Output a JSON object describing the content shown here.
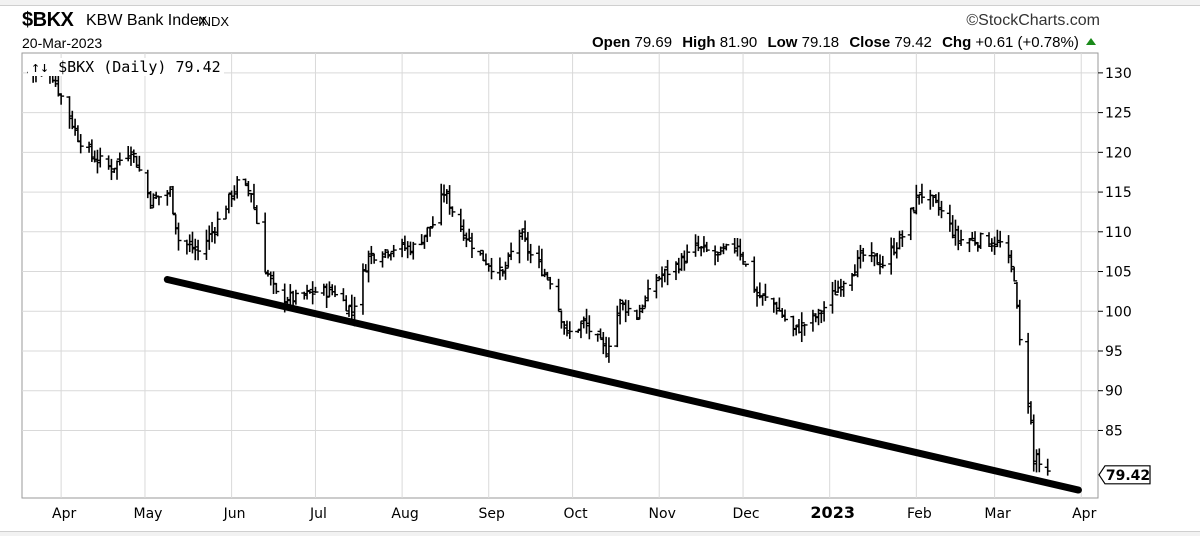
{
  "header": {
    "symbol": "$BKX",
    "name": "KBW Bank Index",
    "exchange": "INDX",
    "date": "20-Mar-2023",
    "brand": "©StockCharts.com",
    "quote": {
      "open_label": "Open",
      "open": "79.69",
      "high_label": "High",
      "high": "81.90",
      "low_label": "Low",
      "low": "79.18",
      "close_label": "Close",
      "close": "79.42",
      "chg_label": "Chg",
      "chg": "+0.61 (+0.78%)"
    }
  },
  "legend": {
    "text": "$BKX (Daily) 79.42"
  },
  "colors": {
    "bars": "#000000",
    "trendline": "#000000",
    "grid": "#d9d9d9",
    "up": "#1a8a1a"
  },
  "chart_data": {
    "type": "ohlc",
    "title": "$BKX (Daily) 79.42",
    "ylim": [
      76.5,
      132.5
    ],
    "yticks": [
      85,
      90,
      95,
      100,
      105,
      110,
      115,
      120,
      125,
      130
    ],
    "xticks": [
      {
        "label": "Apr",
        "date": "2022-04-01"
      },
      {
        "label": "May",
        "date": "2022-05-01"
      },
      {
        "label": "Jun",
        "date": "2022-06-01"
      },
      {
        "label": "Jul",
        "date": "2022-07-01"
      },
      {
        "label": "Aug",
        "date": "2022-08-01"
      },
      {
        "label": "Sep",
        "date": "2022-09-01"
      },
      {
        "label": "Oct",
        "date": "2022-10-01"
      },
      {
        "label": "Nov",
        "date": "2022-11-01"
      },
      {
        "label": "Dec",
        "date": "2022-12-01"
      },
      {
        "label": "2023",
        "date": "2023-01-01",
        "bold": true
      },
      {
        "label": "Feb",
        "date": "2023-02-01"
      },
      {
        "label": "Mar",
        "date": "2023-03-01"
      },
      {
        "label": "Apr",
        "date": "2023-04-01"
      }
    ],
    "last_value_label": "79.42",
    "price_path": [
      [
        "2022-03-21",
        130
      ],
      [
        "2022-03-28",
        130.5
      ],
      [
        "2022-04-01",
        127
      ],
      [
        "2022-04-07",
        122
      ],
      [
        "2022-04-12",
        119.5
      ],
      [
        "2022-04-19",
        118
      ],
      [
        "2022-04-26",
        120.5
      ],
      [
        "2022-05-03",
        114
      ],
      [
        "2022-05-10",
        115
      ],
      [
        "2022-05-13",
        109
      ],
      [
        "2022-05-20",
        107.5
      ],
      [
        "2022-05-25",
        110
      ],
      [
        "2022-06-03",
        116
      ],
      [
        "2022-06-08",
        115
      ],
      [
        "2022-06-13",
        105.5
      ],
      [
        "2022-06-17",
        102
      ],
      [
        "2022-06-24",
        101.5
      ],
      [
        "2022-07-01",
        102.5
      ],
      [
        "2022-07-08",
        102.5
      ],
      [
        "2022-07-14",
        100
      ],
      [
        "2022-07-20",
        107
      ],
      [
        "2022-07-29",
        108
      ],
      [
        "2022-08-05",
        108
      ],
      [
        "2022-08-12",
        111
      ],
      [
        "2022-08-16",
        115
      ],
      [
        "2022-08-22",
        110.5
      ],
      [
        "2022-08-29",
        107
      ],
      [
        "2022-09-06",
        104.5
      ],
      [
        "2022-09-12",
        110
      ],
      [
        "2022-09-16",
        107
      ],
      [
        "2022-09-23",
        104
      ],
      [
        "2022-09-29",
        97
      ],
      [
        "2022-10-05",
        98.5
      ],
      [
        "2022-10-13",
        95
      ],
      [
        "2022-10-18",
        101
      ],
      [
        "2022-10-24",
        99.5
      ],
      [
        "2022-10-31",
        104
      ],
      [
        "2022-11-08",
        106
      ],
      [
        "2022-11-14",
        108
      ],
      [
        "2022-11-22",
        107
      ],
      [
        "2022-11-29",
        108.5
      ],
      [
        "2022-12-06",
        102
      ],
      [
        "2022-12-12",
        101
      ],
      [
        "2022-12-19",
        97.5
      ],
      [
        "2022-12-28",
        99.5
      ],
      [
        "2023-01-06",
        104
      ],
      [
        "2023-01-13",
        107
      ],
      [
        "2023-01-20",
        106
      ],
      [
        "2023-01-27",
        109.5
      ],
      [
        "2023-02-02",
        115
      ],
      [
        "2023-02-09",
        113
      ],
      [
        "2023-02-16",
        109
      ],
      [
        "2023-02-24",
        109
      ],
      [
        "2023-03-03",
        108.5
      ],
      [
        "2023-03-08",
        104.5
      ],
      [
        "2023-03-09",
        100
      ],
      [
        "2023-03-10",
        96
      ],
      [
        "2023-03-13",
        89
      ],
      [
        "2023-03-14",
        86
      ],
      [
        "2023-03-15",
        81
      ],
      [
        "2023-03-16",
        82
      ],
      [
        "2023-03-17",
        80
      ],
      [
        "2023-03-20",
        79.42
      ]
    ],
    "trendline": {
      "start": [
        "2022-05-09",
        104.0
      ],
      "end": [
        "2023-03-31",
        77.5
      ]
    }
  }
}
